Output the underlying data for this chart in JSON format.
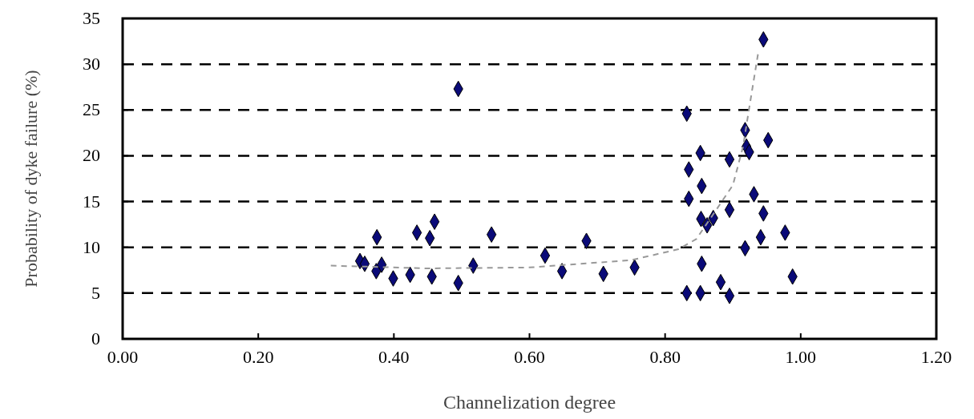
{
  "chart_data": {
    "type": "scatter",
    "xlabel": "Channelization degree",
    "ylabel": "Probability of dyke failure (%)",
    "xlim": [
      0,
      1.2
    ],
    "ylim": [
      0,
      35
    ],
    "xticks": [
      {
        "value": 0,
        "label": "0.00"
      },
      {
        "value": 0.2,
        "label": "0.20"
      },
      {
        "value": 0.4,
        "label": "0.40"
      },
      {
        "value": 0.6,
        "label": "0.60"
      },
      {
        "value": 0.8,
        "label": "0.80"
      },
      {
        "value": 1,
        "label": "1.00"
      },
      {
        "value": 1.2,
        "label": "1.20"
      }
    ],
    "yticks": [
      0,
      5,
      10,
      15,
      20,
      25,
      30,
      35
    ],
    "grid": "y",
    "series": [
      {
        "marker": "diamond",
        "color": "#0a0a78",
        "x": [
          0.495,
          0.35,
          0.357,
          0.375,
          0.382,
          0.374,
          0.399,
          0.424,
          0.434,
          0.453,
          0.46,
          0.456,
          0.495,
          0.517,
          0.544,
          0.623,
          0.648,
          0.684,
          0.709,
          0.755,
          0.945,
          0.832,
          0.918,
          0.952,
          0.852,
          0.92,
          0.924,
          0.895,
          0.835,
          0.854,
          0.931,
          0.835,
          0.895,
          0.945,
          0.853,
          0.871,
          0.862,
          0.977,
          0.941,
          0.918,
          0.854,
          0.988,
          0.882,
          0.832,
          0.852,
          0.895
        ],
        "values": [
          27.3,
          8.5,
          8.2,
          11.1,
          8.1,
          7.4,
          6.6,
          7.0,
          11.6,
          11.0,
          12.8,
          6.8,
          6.1,
          8.0,
          11.4,
          9.1,
          7.4,
          10.7,
          7.1,
          7.8,
          32.7,
          24.6,
          22.8,
          21.7,
          20.3,
          21.0,
          20.4,
          19.6,
          18.5,
          16.7,
          15.8,
          15.3,
          14.1,
          13.7,
          13.1,
          13.2,
          12.4,
          11.6,
          11.1,
          9.9,
          8.2,
          6.8,
          6.2,
          5.0,
          5.0,
          4.7
        ]
      },
      {
        "type": "line",
        "line_style": "dashed",
        "marker": "none",
        "color": "#999999",
        "x": [
          0.307,
          0.45,
          0.6,
          0.75,
          0.82,
          0.846,
          0.87,
          0.9,
          0.915,
          0.924,
          0.937
        ],
        "values": [
          8.0,
          7.7,
          7.8,
          8.6,
          9.8,
          10.9,
          13.5,
          16.8,
          21,
          25.2,
          31.1
        ]
      }
    ]
  }
}
